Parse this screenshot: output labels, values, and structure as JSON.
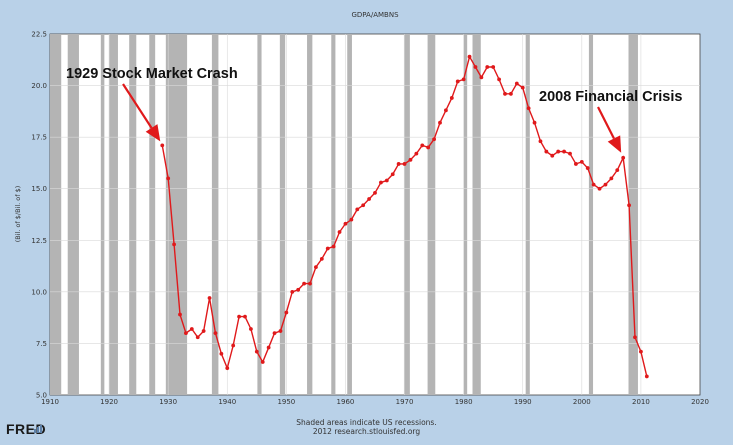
{
  "chart_data": {
    "type": "line",
    "title": "GDPA/AMBNS",
    "xlabel": "",
    "ylabel": "(Bil. of $/Bil. of $)",
    "xlim": [
      1910,
      2020
    ],
    "ylim": [
      5.0,
      22.5
    ],
    "xticks": [
      1910,
      1920,
      1930,
      1940,
      1950,
      1960,
      1970,
      1980,
      1990,
      2000,
      2010,
      2020
    ],
    "yticks": [
      5.0,
      7.5,
      10.0,
      12.5,
      15.0,
      17.5,
      20.0,
      22.5
    ],
    "grid": true,
    "colors": {
      "line": "#e0191b",
      "recession": "#b4b4b4",
      "annotation": "#e0191b"
    },
    "series": [
      {
        "values": [
          {
            "x": 1929,
            "y": 17.1
          },
          {
            "x": 1930,
            "y": 15.5
          },
          {
            "x": 1931,
            "y": 12.3
          },
          {
            "x": 1932,
            "y": 8.9
          },
          {
            "x": 1933,
            "y": 8.0
          },
          {
            "x": 1934,
            "y": 8.2
          },
          {
            "x": 1935,
            "y": 7.8
          },
          {
            "x": 1936,
            "y": 8.1
          },
          {
            "x": 1937,
            "y": 9.7
          },
          {
            "x": 1938,
            "y": 8.0
          },
          {
            "x": 1939,
            "y": 7.0
          },
          {
            "x": 1940,
            "y": 6.3
          },
          {
            "x": 1941,
            "y": 7.4
          },
          {
            "x": 1942,
            "y": 8.8
          },
          {
            "x": 1943,
            "y": 8.8
          },
          {
            "x": 1944,
            "y": 8.2
          },
          {
            "x": 1945,
            "y": 7.1
          },
          {
            "x": 1946,
            "y": 6.6
          },
          {
            "x": 1947,
            "y": 7.3
          },
          {
            "x": 1948,
            "y": 8.0
          },
          {
            "x": 1949,
            "y": 8.1
          },
          {
            "x": 1950,
            "y": 9.0
          },
          {
            "x": 1951,
            "y": 10.0
          },
          {
            "x": 1952,
            "y": 10.1
          },
          {
            "x": 1953,
            "y": 10.4
          },
          {
            "x": 1954,
            "y": 10.4
          },
          {
            "x": 1955,
            "y": 11.2
          },
          {
            "x": 1956,
            "y": 11.6
          },
          {
            "x": 1957,
            "y": 12.1
          },
          {
            "x": 1958,
            "y": 12.2
          },
          {
            "x": 1959,
            "y": 12.9
          },
          {
            "x": 1960,
            "y": 13.3
          },
          {
            "x": 1961,
            "y": 13.5
          },
          {
            "x": 1962,
            "y": 14.0
          },
          {
            "x": 1963,
            "y": 14.2
          },
          {
            "x": 1964,
            "y": 14.5
          },
          {
            "x": 1965,
            "y": 14.8
          },
          {
            "x": 1966,
            "y": 15.3
          },
          {
            "x": 1967,
            "y": 15.4
          },
          {
            "x": 1968,
            "y": 15.7
          },
          {
            "x": 1969,
            "y": 16.2
          },
          {
            "x": 1970,
            "y": 16.2
          },
          {
            "x": 1971,
            "y": 16.4
          },
          {
            "x": 1972,
            "y": 16.7
          },
          {
            "x": 1973,
            "y": 17.1
          },
          {
            "x": 1974,
            "y": 17.0
          },
          {
            "x": 1975,
            "y": 17.4
          },
          {
            "x": 1976,
            "y": 18.2
          },
          {
            "x": 1977,
            "y": 18.8
          },
          {
            "x": 1978,
            "y": 19.4
          },
          {
            "x": 1979,
            "y": 20.2
          },
          {
            "x": 1980,
            "y": 20.3
          },
          {
            "x": 1981,
            "y": 21.4
          },
          {
            "x": 1982,
            "y": 20.9
          },
          {
            "x": 1983,
            "y": 20.4
          },
          {
            "x": 1984,
            "y": 20.9
          },
          {
            "x": 1985,
            "y": 20.9
          },
          {
            "x": 1986,
            "y": 20.3
          },
          {
            "x": 1987,
            "y": 19.6
          },
          {
            "x": 1988,
            "y": 19.6
          },
          {
            "x": 1989,
            "y": 20.1
          },
          {
            "x": 1990,
            "y": 19.9
          },
          {
            "x": 1991,
            "y": 18.9
          },
          {
            "x": 1992,
            "y": 18.2
          },
          {
            "x": 1993,
            "y": 17.3
          },
          {
            "x": 1994,
            "y": 16.8
          },
          {
            "x": 1995,
            "y": 16.6
          },
          {
            "x": 1996,
            "y": 16.8
          },
          {
            "x": 1997,
            "y": 16.8
          },
          {
            "x": 1998,
            "y": 16.7
          },
          {
            "x": 1999,
            "y": 16.2
          },
          {
            "x": 2000,
            "y": 16.3
          },
          {
            "x": 2001,
            "y": 16.0
          },
          {
            "x": 2002,
            "y": 15.2
          },
          {
            "x": 2003,
            "y": 15.0
          },
          {
            "x": 2004,
            "y": 15.2
          },
          {
            "x": 2005,
            "y": 15.5
          },
          {
            "x": 2006,
            "y": 15.9
          },
          {
            "x": 2007,
            "y": 16.5
          },
          {
            "x": 2008,
            "y": 14.2
          },
          {
            "x": 2009,
            "y": 7.8
          },
          {
            "x": 2010,
            "y": 7.1
          },
          {
            "x": 2011,
            "y": 5.9
          }
        ]
      }
    ],
    "recessions": [
      [
        1910.0,
        1911.9
      ],
      [
        1913.0,
        1914.9
      ],
      [
        1918.6,
        1919.2
      ],
      [
        1920.0,
        1921.5
      ],
      [
        1923.4,
        1924.6
      ],
      [
        1926.8,
        1927.8
      ],
      [
        1929.6,
        1933.2
      ],
      [
        1937.4,
        1938.5
      ],
      [
        1945.1,
        1945.8
      ],
      [
        1948.9,
        1949.8
      ],
      [
        1953.5,
        1954.4
      ],
      [
        1957.6,
        1958.3
      ],
      [
        1960.3,
        1961.1
      ],
      [
        1969.9,
        1970.9
      ],
      [
        1973.9,
        1975.2
      ],
      [
        1980.0,
        1980.6
      ],
      [
        1981.5,
        1982.9
      ],
      [
        1990.5,
        1991.2
      ],
      [
        2001.2,
        2001.9
      ],
      [
        2007.9,
        2009.5
      ]
    ],
    "annotations": [
      {
        "text": "1929 Stock Market Crash",
        "x": 1929,
        "y": 17.1
      },
      {
        "text": "2008 Financial Crisis",
        "x": 2007,
        "y": 16.5
      }
    ]
  },
  "footer": {
    "line1": "Shaded areas indicate US recessions.",
    "line2": "2012 research.stlouisfed.org",
    "logo": "FRED"
  }
}
